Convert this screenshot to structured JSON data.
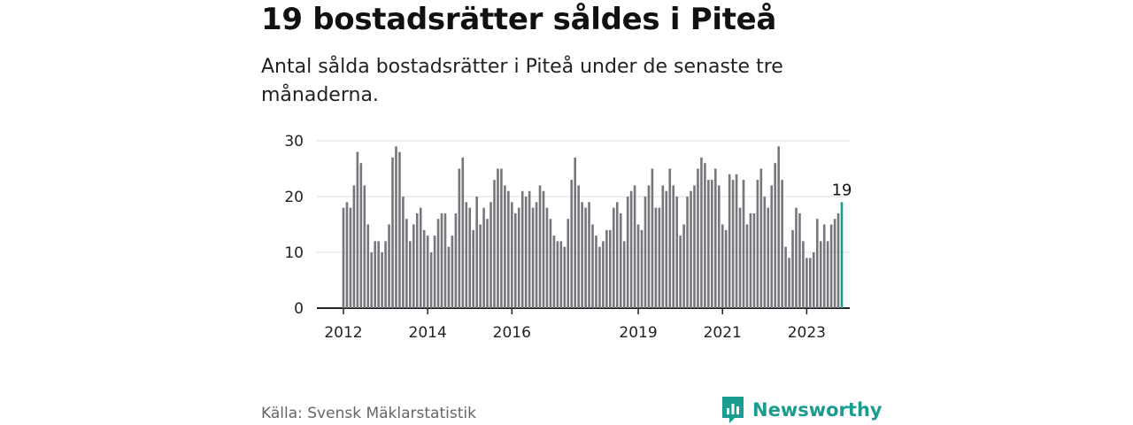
{
  "title": "19 bostadsrätter såldes i Piteå",
  "subtitle": "Antal sålda bostadsrätter i Piteå under de senaste tre månaderna.",
  "source": "Källa: Svensk Mäklarstatistik",
  "brand": "Newsworthy",
  "colors": {
    "bar": "#77767c",
    "highlight": "#1a9c8f",
    "grid": "#dddddd",
    "axis": "#222222"
  },
  "chart_data": {
    "type": "bar",
    "ylim": [
      0,
      30
    ],
    "yticks": [
      0,
      10,
      20,
      30
    ],
    "xticks": [
      {
        "label": "2012",
        "index": 0
      },
      {
        "label": "2014",
        "index": 24
      },
      {
        "label": "2016",
        "index": 48
      },
      {
        "label": "2019",
        "index": 84
      },
      {
        "label": "2021",
        "index": 108
      },
      {
        "label": "2023",
        "index": 132
      }
    ],
    "values": [
      18,
      19,
      18,
      22,
      28,
      26,
      22,
      15,
      10,
      12,
      12,
      10,
      12,
      15,
      27,
      29,
      28,
      20,
      16,
      12,
      15,
      17,
      18,
      14,
      13,
      10,
      13,
      16,
      17,
      17,
      11,
      13,
      17,
      25,
      27,
      19,
      18,
      14,
      20,
      15,
      18,
      16,
      19,
      23,
      25,
      25,
      22,
      21,
      19,
      17,
      18,
      21,
      20,
      21,
      18,
      19,
      22,
      21,
      18,
      16,
      13,
      12,
      12,
      11,
      16,
      23,
      27,
      22,
      19,
      18,
      19,
      15,
      13,
      11,
      12,
      14,
      14,
      18,
      19,
      17,
      12,
      20,
      21,
      22,
      15,
      14,
      20,
      22,
      25,
      18,
      18,
      22,
      21,
      25,
      22,
      20,
      13,
      15,
      20,
      21,
      22,
      25,
      27,
      26,
      23,
      23,
      25,
      22,
      15,
      14,
      24,
      23,
      24,
      18,
      23,
      15,
      17,
      17,
      23,
      25,
      20,
      18,
      22,
      26,
      29,
      23,
      11,
      9,
      14,
      18,
      17,
      12,
      9,
      9,
      10,
      16,
      12,
      15,
      12,
      15,
      16,
      17,
      19
    ],
    "highlight_label": "19"
  }
}
